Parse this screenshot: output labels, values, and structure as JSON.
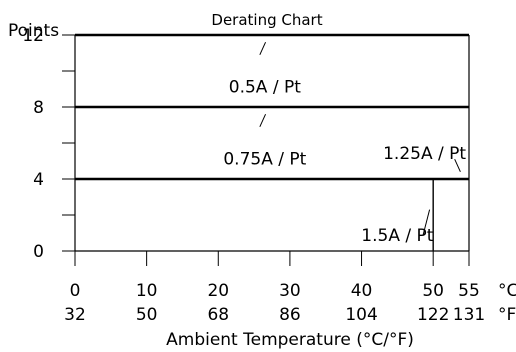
{
  "chart_data": {
    "type": "line",
    "title": "Derating Chart",
    "ylabel": "Points",
    "xlabel": "Ambient Temperature (°C/°F)",
    "x_unit_c": "°C",
    "x_unit_f": "°F",
    "xlim": [
      0,
      55
    ],
    "ylim": [
      0,
      12
    ],
    "x_ticks_c": [
      {
        "c": 0,
        "label": "0"
      },
      {
        "c": 10,
        "label": "10"
      },
      {
        "c": 20,
        "label": "20"
      },
      {
        "c": 30,
        "label": "30"
      },
      {
        "c": 40,
        "label": "40"
      },
      {
        "c": 50,
        "label": "50"
      },
      {
        "c": 55,
        "label": "55"
      }
    ],
    "x_ticks_f": [
      {
        "c": 0,
        "label": "32"
      },
      {
        "c": 10,
        "label": "50"
      },
      {
        "c": 20,
        "label": "68"
      },
      {
        "c": 30,
        "label": "86"
      },
      {
        "c": 40,
        "label": "104"
      },
      {
        "c": 50,
        "label": "122"
      },
      {
        "c": 55,
        "label": "131"
      }
    ],
    "y_ticks": [
      {
        "value": 0,
        "label": "0"
      },
      {
        "value": 2,
        "label": ""
      },
      {
        "value": 4,
        "label": "4"
      },
      {
        "value": 6,
        "label": ""
      },
      {
        "value": 8,
        "label": "8"
      },
      {
        "value": 10,
        "label": ""
      },
      {
        "value": 12,
        "label": "12"
      }
    ],
    "series": [
      {
        "name": "0.5A / Pt",
        "points": [
          [
            0,
            12
          ],
          [
            55,
            12
          ]
        ]
      },
      {
        "name": "0.75A / Pt",
        "points": [
          [
            0,
            8
          ],
          [
            55,
            8
          ]
        ]
      },
      {
        "name": "1.25A / Pt",
        "points": [
          [
            0,
            4
          ],
          [
            55,
            4
          ]
        ]
      },
      {
        "name": "1.5A / Pt",
        "points": [
          [
            50,
            0
          ],
          [
            50,
            4
          ]
        ]
      }
    ],
    "grid": false,
    "legend": "annotations",
    "annotations": [
      {
        "text": "0.5A / Pt",
        "series": 0
      },
      {
        "text": "0.75A / Pt",
        "series": 1
      },
      {
        "text": "1.25A / Pt",
        "series": 2
      },
      {
        "text": "1.5A / Pt",
        "series": 3
      }
    ]
  }
}
